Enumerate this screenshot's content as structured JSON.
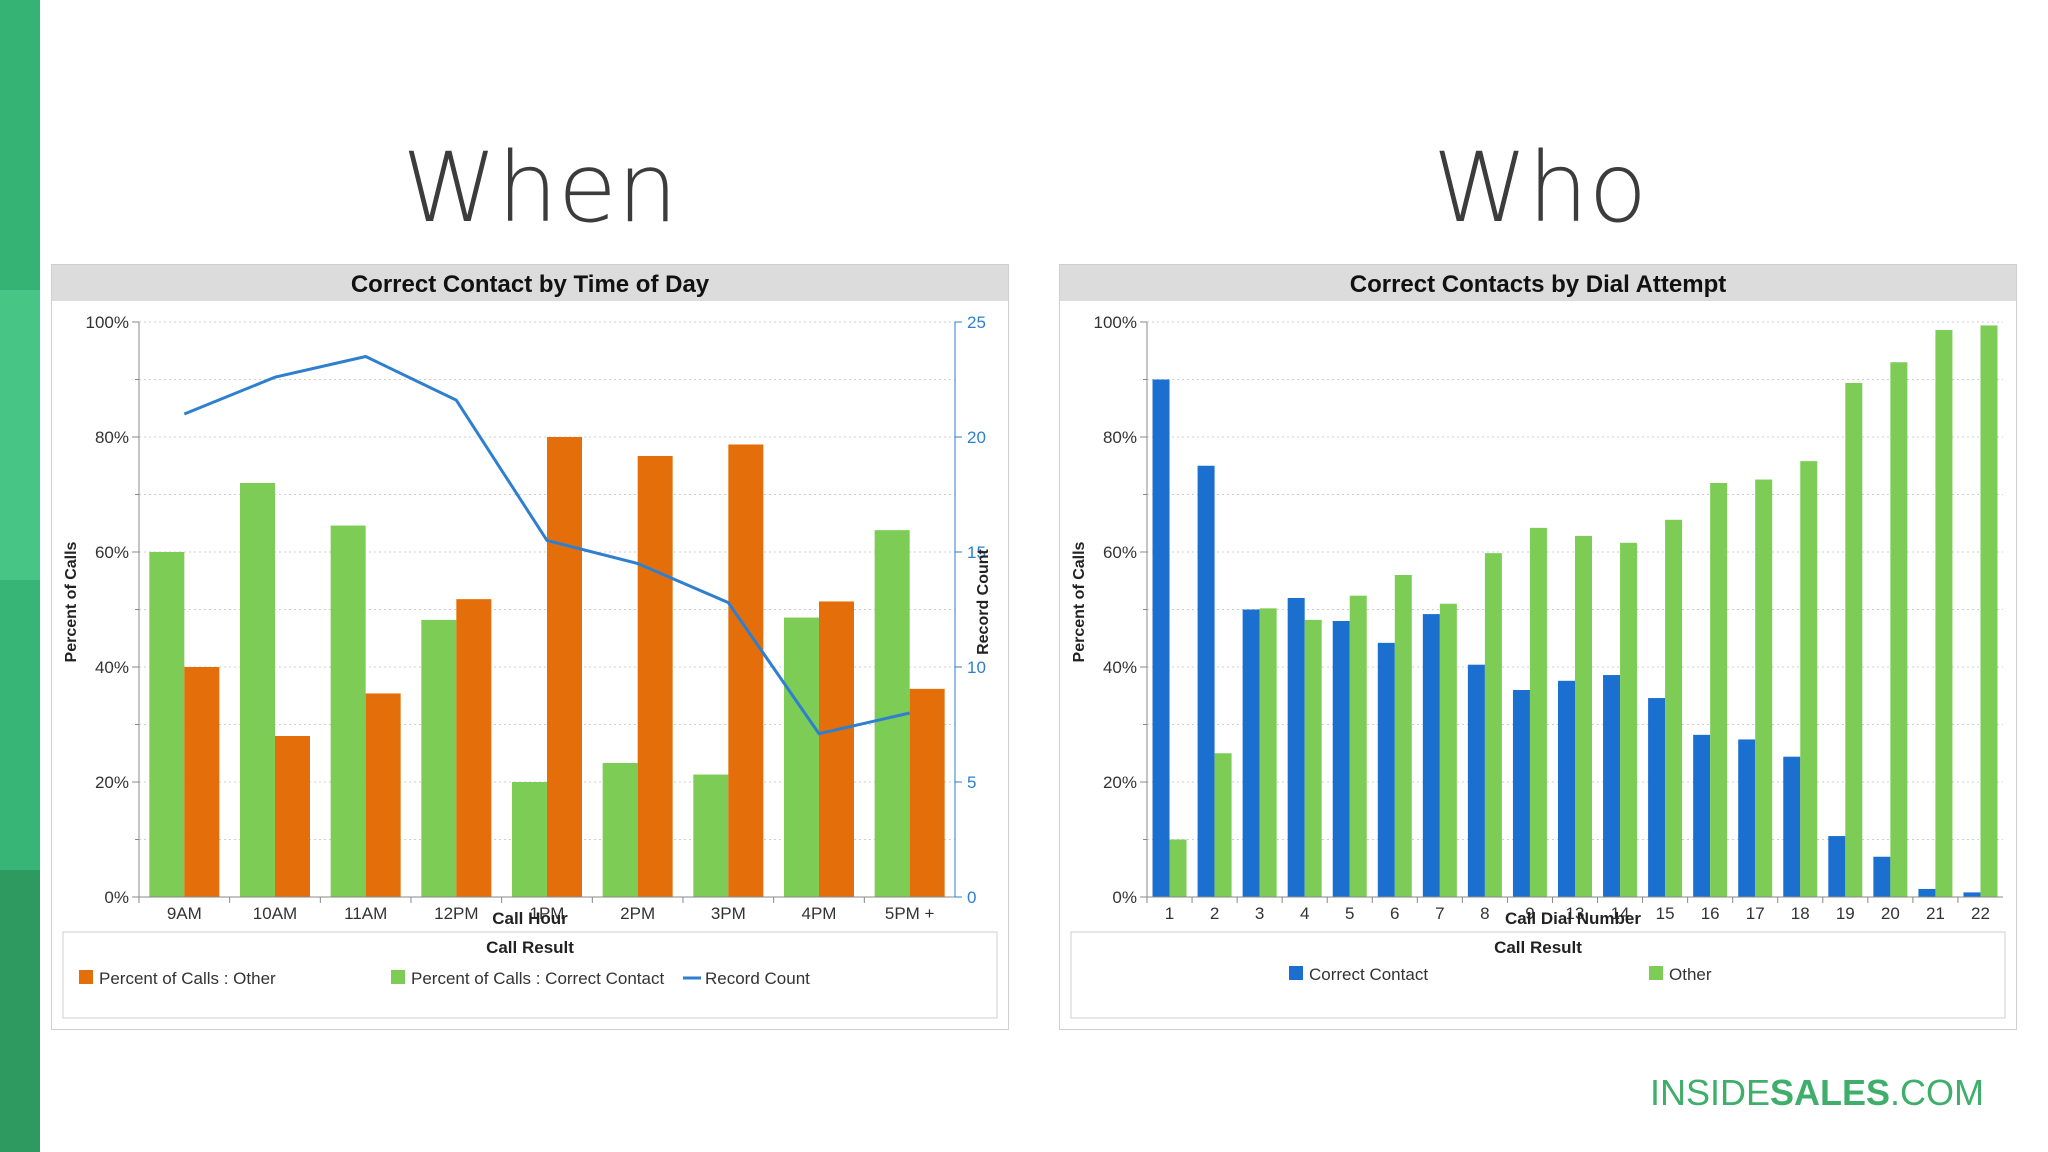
{
  "slide": {
    "title_left": "When",
    "title_right": "Who",
    "brand_inside": "INSIDE",
    "brand_sales": "SALES",
    "brand_dotcom": ".COM"
  },
  "colors": {
    "orange": "#e46f0a",
    "green": "#7ccc55",
    "blue": "#1a6fcf",
    "line": "#2e7fd0",
    "header_bg": "#dcdcdc",
    "brand_green": "#3fae6b"
  },
  "chart_data": [
    {
      "type": "bar",
      "title": "Correct Contact by Time of Day",
      "xlabel": "Call Hour",
      "ylabel": "Percent of Calls",
      "y2label": "Record Count",
      "ylim": [
        0,
        100
      ],
      "y2lim": [
        0,
        25
      ],
      "yticks": [
        "0%",
        "20%",
        "40%",
        "60%",
        "80%",
        "100%"
      ],
      "y2ticks": [
        "0",
        "5",
        "10",
        "15",
        "20",
        "25"
      ],
      "categories": [
        "9AM",
        "10AM",
        "11AM",
        "12PM",
        "1PM",
        "2PM",
        "3PM",
        "4PM",
        "5PM +"
      ],
      "series": [
        {
          "name": "Percent of Calls : Correct Contact",
          "kind": "bar",
          "color": "#7ccc55",
          "values": [
            60,
            72,
            64.6,
            48.2,
            20,
            23.3,
            21.3,
            48.6,
            63.8
          ]
        },
        {
          "name": "Percent of Calls : Other",
          "kind": "bar",
          "color": "#e46f0a",
          "values": [
            40,
            28,
            35.4,
            51.8,
            80,
            76.7,
            78.7,
            51.4,
            36.2
          ]
        },
        {
          "name": "Record Count",
          "kind": "line",
          "axis": "right",
          "color": "#2e7fd0",
          "values": [
            21,
            22.6,
            23.5,
            21.6,
            15.5,
            14.5,
            12.8,
            7.1,
            8
          ]
        }
      ],
      "legend_title": "Call Result",
      "legend": [
        {
          "label": "Percent of Calls : Other",
          "color": "#e46f0a",
          "kind": "box"
        },
        {
          "label": "Percent of Calls : Correct Contact",
          "color": "#7ccc55",
          "kind": "box"
        },
        {
          "label": "Record Count",
          "color": "#2e7fd0",
          "kind": "line"
        }
      ]
    },
    {
      "type": "bar",
      "title": "Correct Contacts by Dial Attempt",
      "xlabel": "Call Dial Number",
      "ylabel": "Percent of Calls",
      "ylim": [
        0,
        100
      ],
      "yticks": [
        "0%",
        "20%",
        "40%",
        "60%",
        "80%",
        "100%"
      ],
      "categories": [
        "1",
        "2",
        "3",
        "4",
        "5",
        "6",
        "7",
        "8",
        "9",
        "13",
        "14",
        "15",
        "16",
        "17",
        "18",
        "19",
        "20",
        "21",
        "22"
      ],
      "series": [
        {
          "name": "Correct Contact",
          "kind": "bar",
          "color": "#1a6fcf",
          "values": [
            90,
            75,
            50,
            52,
            48,
            44.2,
            49.2,
            40.4,
            36,
            37.6,
            38.6,
            34.6,
            28.2,
            27.4,
            24.4,
            10.6,
            7,
            1.4,
            0.8
          ]
        },
        {
          "name": "Other",
          "kind": "bar",
          "color": "#7ccc55",
          "values": [
            10,
            25,
            50.2,
            48.2,
            52.4,
            56,
            51,
            59.8,
            64.2,
            62.8,
            61.6,
            65.6,
            72,
            72.6,
            75.8,
            89.4,
            93,
            98.6,
            99.4
          ]
        }
      ],
      "legend_title": "Call Result",
      "legend": [
        {
          "label": "Correct Contact",
          "color": "#1a6fcf",
          "kind": "box"
        },
        {
          "label": "Other",
          "color": "#7ccc55",
          "kind": "box"
        }
      ]
    }
  ]
}
